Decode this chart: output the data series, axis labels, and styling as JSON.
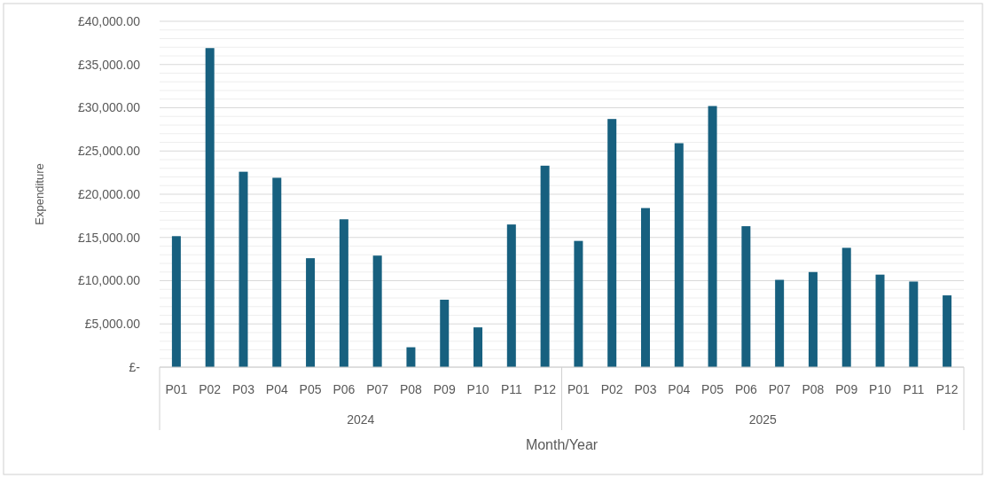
{
  "chart_data": {
    "type": "bar",
    "xlabel": "Month/Year",
    "ylabel": "Expenditure",
    "categories": [
      "P01",
      "P02",
      "P03",
      "P04",
      "P05",
      "P06",
      "P07",
      "P08",
      "P09",
      "P10",
      "P11",
      "P12",
      "P01",
      "P02",
      "P03",
      "P04",
      "P05",
      "P06",
      "P07",
      "P08",
      "P09",
      "P10",
      "P11",
      "P12"
    ],
    "values": [
      15150,
      36900,
      22600,
      21900,
      12600,
      17100,
      12900,
      2300,
      7800,
      4600,
      16500,
      23300,
      14600,
      28700,
      18400,
      25900,
      30200,
      16300,
      10100,
      11000,
      13800,
      10700,
      9900,
      8300
    ],
    "color": "#17607f",
    "ylim": [
      0,
      40000
    ],
    "yticks": [
      {
        "value": 0,
        "label": "£-"
      },
      {
        "value": 5000,
        "label": "£5,000.00"
      },
      {
        "value": 10000,
        "label": "£10,000.00"
      },
      {
        "value": 15000,
        "label": "£15,000.00"
      },
      {
        "value": 20000,
        "label": "£20,000.00"
      },
      {
        "value": 25000,
        "label": "£25,000.00"
      },
      {
        "value": 30000,
        "label": "£30,000.00"
      },
      {
        "value": 35000,
        "label": "£35,000.00"
      },
      {
        "value": 40000,
        "label": "£40,000.00"
      }
    ],
    "grid": true,
    "annotations": [
      "2024",
      "2025"
    ]
  }
}
